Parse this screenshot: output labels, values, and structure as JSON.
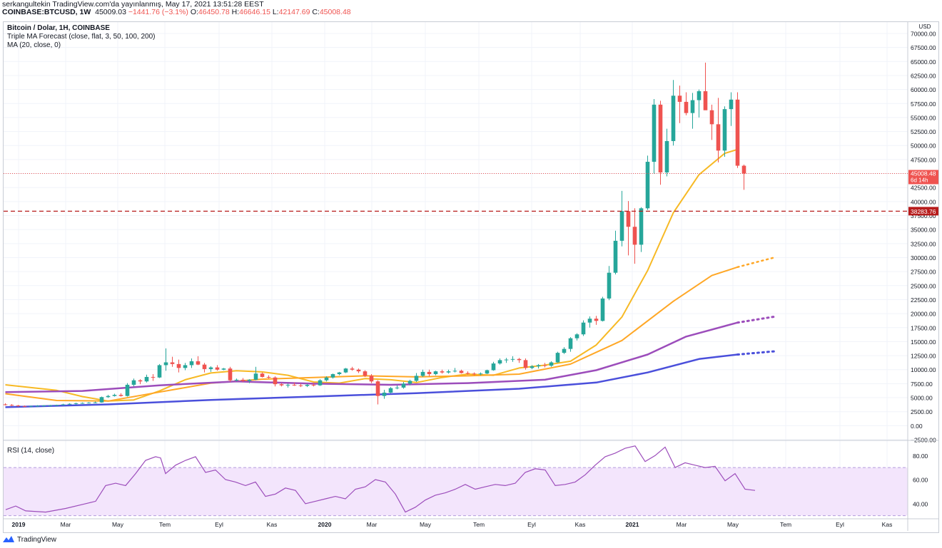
{
  "header": {
    "publisher_line": "serkangultekin TradingView.com'da yayınlanmış, May 17, 2021 13:51:28 EEST",
    "symbol": "COINBASE:BTCUSD, 1W",
    "price": "45009.03",
    "change": "−1441.76 (−3.1%)",
    "open_label": "O:",
    "open": "46450.78",
    "high_label": "H:",
    "high": "46646.15",
    "low_label": "L:",
    "low": "42147.69",
    "close_label": "C:",
    "close": "45008.48",
    "up_color": "#26a69a",
    "down_color": "#ef5350"
  },
  "legend": {
    "title": "Bitcoin / Dolar, 1H, COINBASE",
    "indicator1": "Triple MA Forecast (close, flat, 3, 50, 100, 200)",
    "indicator2": "MA (20, close, 0)",
    "rsi": "RSI (14, close)"
  },
  "price_axis": {
    "currency": "USD",
    "last_price_label": "45008.48",
    "last_price_sublabel": "6d 14h",
    "hline_label": "38283.76",
    "hline_color": "#b71c1c"
  },
  "footer": {
    "brand": "TradingView"
  },
  "chart_data": {
    "type": "candlestick",
    "ylim": [
      -2500,
      70000
    ],
    "yticks": [
      "70000.00",
      "67500.00",
      "65000.00",
      "62500.00",
      "60000.00",
      "57500.00",
      "55000.00",
      "52500.00",
      "50000.00",
      "47500.00",
      "45000.00",
      "42500.00",
      "40000.00",
      "37500.00",
      "35000.00",
      "32500.00",
      "30000.00",
      "27500.00",
      "25000.00",
      "22500.00",
      "20000.00",
      "17500.00",
      "15000.00",
      "12500.00",
      "10000.00",
      "7500.00",
      "5000.00",
      "2500.00",
      "0.00",
      "−2500.00"
    ],
    "xticks": [
      "2019",
      "Mar",
      "May",
      "Tem",
      "Eyl",
      "Kas",
      "2020",
      "Mar",
      "May",
      "Tem",
      "Eyl",
      "Kas",
      "2021",
      "Mar",
      "May",
      "Tem",
      "Eyl",
      "Kas"
    ],
    "last_price": 45008.48,
    "horizontal_line": 38283.76,
    "candles": [
      [
        3800,
        4000,
        3600,
        3700
      ],
      [
        3700,
        3850,
        3500,
        3600
      ],
      [
        3600,
        3700,
        3400,
        3500
      ],
      [
        3500,
        3600,
        3300,
        3450
      ],
      [
        3450,
        3550,
        3350,
        3500
      ],
      [
        3500,
        3650,
        3400,
        3550
      ],
      [
        3550,
        3650,
        3450,
        3600
      ],
      [
        3600,
        3700,
        3500,
        3620
      ],
      [
        3620,
        3750,
        3550,
        3700
      ],
      [
        3700,
        3900,
        3650,
        3800
      ],
      [
        3800,
        4000,
        3750,
        3900
      ],
      [
        3900,
        4100,
        3800,
        4000
      ],
      [
        4000,
        4150,
        3900,
        4050
      ],
      [
        4050,
        4200,
        3950,
        4100
      ],
      [
        4100,
        4300,
        4000,
        4150
      ],
      [
        4150,
        5200,
        4100,
        5100
      ],
      [
        5100,
        5500,
        4950,
        5300
      ],
      [
        5300,
        5700,
        5200,
        5500
      ],
      [
        5500,
        5800,
        5200,
        5300
      ],
      [
        5300,
        7600,
        5200,
        7300
      ],
      [
        7300,
        8400,
        7000,
        8100
      ],
      [
        8100,
        8300,
        7400,
        7900
      ],
      [
        7900,
        9100,
        7700,
        8700
      ],
      [
        8700,
        9200,
        8000,
        8600
      ],
      [
        8600,
        11000,
        8500,
        10800
      ],
      [
        10800,
        13800,
        9800,
        11300
      ],
      [
        11300,
        12300,
        10500,
        11000
      ],
      [
        11000,
        11800,
        9500,
        10300
      ],
      [
        10300,
        11200,
        9900,
        10800
      ],
      [
        10800,
        12000,
        10300,
        11500
      ],
      [
        11500,
        12400,
        10800,
        10900
      ],
      [
        10900,
        11200,
        9500,
        10100
      ],
      [
        10100,
        10600,
        9600,
        10400
      ],
      [
        10400,
        10800,
        9800,
        10000
      ],
      [
        10000,
        10300,
        9900,
        10200
      ],
      [
        10200,
        10500,
        7800,
        8100
      ],
      [
        8100,
        8400,
        7900,
        8200
      ],
      [
        8200,
        8500,
        7800,
        8000
      ],
      [
        8000,
        8300,
        7600,
        8200
      ],
      [
        8200,
        10500,
        8100,
        9300
      ],
      [
        9300,
        9500,
        8600,
        8700
      ],
      [
        8700,
        9000,
        8400,
        8600
      ],
      [
        8600,
        8800,
        7000,
        7400
      ],
      [
        7400,
        7600,
        7000,
        7200
      ],
      [
        7200,
        7500,
        6800,
        7300
      ],
      [
        7300,
        7700,
        7100,
        7200
      ],
      [
        7200,
        7500,
        6900,
        7100
      ],
      [
        7100,
        7400,
        6900,
        7300
      ],
      [
        7300,
        7600,
        7000,
        7200
      ],
      [
        7200,
        8300,
        7100,
        8100
      ],
      [
        8100,
        8800,
        7900,
        8600
      ],
      [
        8600,
        9300,
        8400,
        9200
      ],
      [
        9200,
        9600,
        9000,
        9500
      ],
      [
        9500,
        10300,
        9400,
        10200
      ],
      [
        10200,
        10500,
        9800,
        10000
      ],
      [
        10000,
        10200,
        9400,
        9700
      ],
      [
        9700,
        9900,
        8700,
        8900
      ],
      [
        8900,
        9200,
        7600,
        7900
      ],
      [
        7900,
        8100,
        3800,
        5300
      ],
      [
        5300,
        6400,
        4800,
        5900
      ],
      [
        5900,
        6900,
        5800,
        6700
      ],
      [
        6700,
        7200,
        6500,
        6800
      ],
      [
        6800,
        7800,
        6600,
        7500
      ],
      [
        7500,
        8200,
        7200,
        8000
      ],
      [
        8000,
        9400,
        7800,
        8900
      ],
      [
        8900,
        10000,
        8700,
        9600
      ],
      [
        9600,
        10000,
        8800,
        9200
      ],
      [
        9200,
        9800,
        9000,
        9700
      ],
      [
        9700,
        10000,
        9300,
        9500
      ],
      [
        9500,
        10000,
        9300,
        9700
      ],
      [
        9700,
        10300,
        9500,
        9800
      ],
      [
        9800,
        10000,
        9300,
        9400
      ],
      [
        9400,
        9700,
        9100,
        9300
      ],
      [
        9300,
        9500,
        9000,
        9200
      ],
      [
        9200,
        9500,
        9000,
        9300
      ],
      [
        9300,
        10000,
        9200,
        9900
      ],
      [
        9900,
        11400,
        9800,
        11100
      ],
      [
        11100,
        12000,
        10900,
        11700
      ],
      [
        11700,
        12100,
        11200,
        11800
      ],
      [
        11800,
        12400,
        11400,
        11900
      ],
      [
        11900,
        12100,
        11200,
        11700
      ],
      [
        11700,
        12000,
        10000,
        10300
      ],
      [
        10300,
        10800,
        10100,
        10600
      ],
      [
        10600,
        11000,
        10200,
        10800
      ],
      [
        10800,
        11200,
        10400,
        10700
      ],
      [
        10700,
        11500,
        10500,
        11300
      ],
      [
        11300,
        13200,
        11200,
        13000
      ],
      [
        13000,
        14000,
        12800,
        13700
      ],
      [
        13700,
        15800,
        13200,
        15600
      ],
      [
        15600,
        16500,
        15200,
        16300
      ],
      [
        16300,
        18800,
        16000,
        18400
      ],
      [
        18400,
        19500,
        17500,
        19100
      ],
      [
        19100,
        19600,
        18000,
        18700
      ],
      [
        18700,
        23000,
        18600,
        22700
      ],
      [
        22700,
        28500,
        22400,
        27300
      ],
      [
        27300,
        34800,
        27000,
        33000
      ],
      [
        33000,
        41900,
        32000,
        38300
      ],
      [
        38300,
        40100,
        30400,
        35500
      ],
      [
        35500,
        38800,
        28900,
        32300
      ],
      [
        32300,
        39000,
        31000,
        38800
      ],
      [
        38800,
        48200,
        38500,
        47100
      ],
      [
        47100,
        58300,
        45000,
        57300
      ],
      [
        57300,
        58000,
        43000,
        45200
      ],
      [
        45200,
        53000,
        44500,
        50800
      ],
      [
        50800,
        61700,
        50000,
        58900
      ],
      [
        58900,
        60700,
        54000,
        57800
      ],
      [
        57800,
        59500,
        55400,
        55800
      ],
      [
        55800,
        59400,
        53000,
        58100
      ],
      [
        58100,
        60000,
        55000,
        59700
      ],
      [
        59700,
        64800,
        57000,
        56300
      ],
      [
        56300,
        57300,
        51000,
        53800
      ],
      [
        53800,
        58500,
        47000,
        49100
      ],
      [
        49100,
        57000,
        48000,
        56500
      ],
      [
        56500,
        59500,
        53500,
        58200
      ],
      [
        58200,
        59500,
        46000,
        46400
      ],
      [
        46400,
        46600,
        42100,
        45000
      ]
    ],
    "ma20": [
      [
        0,
        7300
      ],
      [
        4,
        6800
      ],
      [
        8,
        6300
      ],
      [
        12,
        5200
      ],
      [
        16,
        4400
      ],
      [
        20,
        4600
      ],
      [
        24,
        6200
      ],
      [
        28,
        8200
      ],
      [
        32,
        9400
      ],
      [
        36,
        9800
      ],
      [
        40,
        9600
      ],
      [
        44,
        9000
      ],
      [
        48,
        7800
      ],
      [
        52,
        7600
      ],
      [
        56,
        8400
      ],
      [
        60,
        8200
      ],
      [
        64,
        7700
      ],
      [
        68,
        8600
      ],
      [
        72,
        9200
      ],
      [
        76,
        9000
      ],
      [
        80,
        10300
      ],
      [
        84,
        10800
      ],
      [
        88,
        11500
      ],
      [
        92,
        14400
      ],
      [
        96,
        19400
      ],
      [
        100,
        27700
      ],
      [
        104,
        38000
      ],
      [
        108,
        44800
      ],
      [
        112,
        48600
      ],
      [
        114,
        49300
      ]
    ],
    "ma50": [
      [
        0,
        5700
      ],
      [
        8,
        4500
      ],
      [
        16,
        4400
      ],
      [
        24,
        6000
      ],
      [
        32,
        7600
      ],
      [
        40,
        8300
      ],
      [
        48,
        8600
      ],
      [
        56,
        8900
      ],
      [
        64,
        8700
      ],
      [
        72,
        8900
      ],
      [
        80,
        9200
      ],
      [
        88,
        11000
      ],
      [
        96,
        15200
      ],
      [
        104,
        22200
      ],
      [
        110,
        26800
      ],
      [
        114,
        28300
      ]
    ],
    "ma50_forecast": [
      [
        114,
        28300
      ],
      [
        120,
        30100
      ]
    ],
    "ma100": [
      [
        0,
        6000
      ],
      [
        12,
        6200
      ],
      [
        24,
        7200
      ],
      [
        36,
        7900
      ],
      [
        48,
        7500
      ],
      [
        60,
        7300
      ],
      [
        72,
        7600
      ],
      [
        84,
        8200
      ],
      [
        92,
        9900
      ],
      [
        100,
        12700
      ],
      [
        106,
        15900
      ],
      [
        114,
        18400
      ]
    ],
    "ma100_forecast": [
      [
        114,
        18400
      ],
      [
        120,
        19500
      ]
    ],
    "ma200": [
      [
        0,
        3300
      ],
      [
        16,
        3800
      ],
      [
        32,
        4600
      ],
      [
        48,
        5200
      ],
      [
        64,
        5800
      ],
      [
        80,
        6600
      ],
      [
        92,
        7700
      ],
      [
        100,
        9500
      ],
      [
        108,
        11900
      ],
      [
        114,
        12700
      ]
    ],
    "ma200_forecast": [
      [
        114,
        12700
      ],
      [
        120,
        13300
      ]
    ],
    "rsi": {
      "ylim": [
        28,
        92
      ],
      "yticks": [
        "80.00",
        "60.00",
        "40.00"
      ],
      "band": [
        30,
        70
      ],
      "values": [
        [
          0,
          35
        ],
        [
          2,
          38
        ],
        [
          4,
          34
        ],
        [
          8,
          33
        ],
        [
          12,
          36
        ],
        [
          16,
          40
        ],
        [
          18,
          42
        ],
        [
          20,
          55
        ],
        [
          22,
          57
        ],
        [
          24,
          55
        ],
        [
          26,
          65
        ],
        [
          28,
          76
        ],
        [
          30,
          79
        ],
        [
          31,
          78
        ],
        [
          32,
          65
        ],
        [
          34,
          72
        ],
        [
          36,
          76
        ],
        [
          38,
          79
        ],
        [
          40,
          66
        ],
        [
          42,
          68
        ],
        [
          44,
          60
        ],
        [
          46,
          58
        ],
        [
          48,
          55
        ],
        [
          50,
          58
        ],
        [
          52,
          46
        ],
        [
          54,
          48
        ],
        [
          56,
          53
        ],
        [
          58,
          51
        ],
        [
          60,
          40
        ],
        [
          62,
          42
        ],
        [
          64,
          44
        ],
        [
          66,
          46
        ],
        [
          68,
          44
        ],
        [
          70,
          52
        ],
        [
          72,
          54
        ],
        [
          74,
          60
        ],
        [
          76,
          58
        ],
        [
          78,
          48
        ],
        [
          80,
          33
        ],
        [
          82,
          37
        ],
        [
          84,
          43
        ],
        [
          86,
          47
        ],
        [
          88,
          49
        ],
        [
          90,
          52
        ],
        [
          92,
          56
        ],
        [
          94,
          52
        ],
        [
          96,
          54
        ],
        [
          98,
          56
        ],
        [
          100,
          55
        ],
        [
          102,
          57
        ],
        [
          104,
          66
        ],
        [
          106,
          69
        ],
        [
          108,
          68
        ],
        [
          110,
          55
        ],
        [
          112,
          56
        ],
        [
          114,
          58
        ],
        [
          116,
          64
        ],
        [
          118,
          72
        ],
        [
          120,
          79
        ],
        [
          122,
          82
        ],
        [
          124,
          86
        ],
        [
          126,
          88
        ],
        [
          128,
          75
        ],
        [
          130,
          80
        ],
        [
          132,
          87
        ],
        [
          134,
          70
        ],
        [
          136,
          74
        ],
        [
          138,
          72
        ],
        [
          140,
          70
        ],
        [
          142,
          71
        ],
        [
          144,
          59
        ],
        [
          146,
          65
        ],
        [
          148,
          52
        ],
        [
          150,
          51
        ]
      ]
    }
  }
}
